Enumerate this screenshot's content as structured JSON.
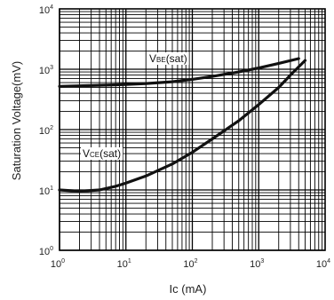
{
  "chart_data": {
    "type": "line",
    "title": "",
    "xlabel": "Ic (mA)",
    "ylabel": "Saturation Voltage(mV)",
    "x_scale": "log",
    "y_scale": "log",
    "xlim": [
      1,
      10000
    ],
    "ylim": [
      1,
      10000
    ],
    "grid": true,
    "x_ticks": [
      {
        "base": "10",
        "exp": "0",
        "value": 1
      },
      {
        "base": "10",
        "exp": "1",
        "value": 10
      },
      {
        "base": "10",
        "exp": "2",
        "value": 100
      },
      {
        "base": "10",
        "exp": "3",
        "value": 1000
      },
      {
        "base": "10",
        "exp": "4",
        "value": 10000
      }
    ],
    "y_ticks": [
      {
        "base": "10",
        "exp": "0",
        "value": 1
      },
      {
        "base": "10",
        "exp": "1",
        "value": 10
      },
      {
        "base": "10",
        "exp": "2",
        "value": 100
      },
      {
        "base": "10",
        "exp": "3",
        "value": 1000
      },
      {
        "base": "10",
        "exp": "4",
        "value": 10000
      }
    ],
    "series": [
      {
        "name": "VBE(sat)",
        "label_main": "V",
        "label_sub": "BE",
        "label_rest": "(sat)",
        "color": "#111111",
        "x": [
          1,
          2,
          5,
          10,
          20,
          50,
          100,
          200,
          500,
          1000,
          2000,
          4000
        ],
        "y": [
          520,
          530,
          545,
          560,
          580,
          620,
          680,
          760,
          900,
          1050,
          1250,
          1500
        ]
      },
      {
        "name": "VCE(sat)",
        "label_main": "V",
        "label_sub": "CE",
        "label_rest": "(sat)",
        "color": "#111111",
        "x": [
          1,
          2,
          4,
          7,
          10,
          20,
          50,
          100,
          200,
          500,
          1000,
          2000,
          3000,
          5000
        ],
        "y": [
          10,
          9.5,
          10,
          11.5,
          13,
          17,
          27,
          42,
          70,
          140,
          260,
          500,
          800,
          1400
        ]
      }
    ]
  }
}
